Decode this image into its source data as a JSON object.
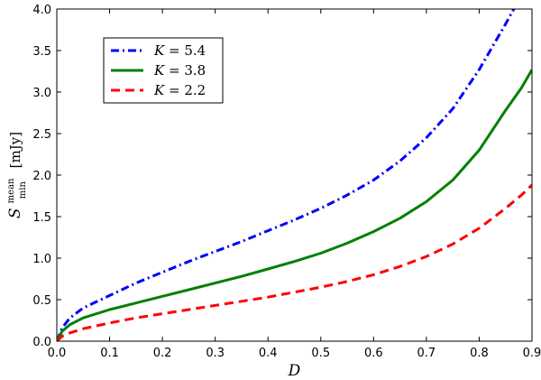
{
  "chart_data": {
    "type": "line",
    "title": "",
    "xlabel": "D",
    "ylabel": {
      "symbol": "S",
      "superscript": "mean",
      "subscript": "min",
      "unit": "[mJy]"
    },
    "xlim": [
      0.0,
      0.9
    ],
    "ylim": [
      0.0,
      4.0
    ],
    "xticks": [
      "0.0",
      "0.1",
      "0.2",
      "0.3",
      "0.4",
      "0.5",
      "0.6",
      "0.7",
      "0.8",
      "0.9"
    ],
    "yticks": [
      "0.0",
      "0.5",
      "1.0",
      "1.5",
      "2.0",
      "2.5",
      "3.0",
      "3.5",
      "4.0"
    ],
    "grid": false,
    "legend_position": "top-left",
    "series": [
      {
        "name": "K = 5.4",
        "legend_var": "K",
        "legend_val": "5.4",
        "color": "#0000ff",
        "style": "dashdot",
        "x": [
          0.0,
          0.01,
          0.025,
          0.05,
          0.1,
          0.15,
          0.2,
          0.25,
          0.3,
          0.35,
          0.4,
          0.45,
          0.5,
          0.55,
          0.6,
          0.65,
          0.7,
          0.75,
          0.8,
          0.83,
          0.85,
          0.87
        ],
        "y": [
          0.0,
          0.16,
          0.28,
          0.4,
          0.55,
          0.7,
          0.83,
          0.96,
          1.08,
          1.2,
          1.33,
          1.46,
          1.6,
          1.76,
          1.94,
          2.17,
          2.45,
          2.8,
          3.27,
          3.6,
          3.82,
          4.05
        ]
      },
      {
        "name": "K = 3.8",
        "legend_var": "K",
        "legend_val": "3.8",
        "color": "#008000",
        "style": "solid",
        "x": [
          0.0,
          0.01,
          0.025,
          0.05,
          0.1,
          0.15,
          0.2,
          0.25,
          0.3,
          0.35,
          0.4,
          0.45,
          0.5,
          0.55,
          0.6,
          0.65,
          0.7,
          0.75,
          0.8,
          0.85,
          0.88,
          0.9
        ],
        "y": [
          0.0,
          0.12,
          0.2,
          0.28,
          0.38,
          0.46,
          0.54,
          0.62,
          0.7,
          0.78,
          0.87,
          0.96,
          1.06,
          1.18,
          1.32,
          1.48,
          1.68,
          1.94,
          2.3,
          2.78,
          3.05,
          3.27
        ]
      },
      {
        "name": "K = 2.2",
        "legend_var": "K",
        "legend_val": "2.2",
        "color": "#ff0000",
        "style": "dashed",
        "x": [
          0.0,
          0.01,
          0.025,
          0.05,
          0.1,
          0.15,
          0.2,
          0.25,
          0.3,
          0.35,
          0.4,
          0.45,
          0.5,
          0.55,
          0.6,
          0.65,
          0.7,
          0.75,
          0.8,
          0.85,
          0.88,
          0.9
        ],
        "y": [
          0.0,
          0.06,
          0.1,
          0.15,
          0.22,
          0.28,
          0.33,
          0.38,
          0.43,
          0.48,
          0.53,
          0.59,
          0.65,
          0.72,
          0.8,
          0.9,
          1.02,
          1.17,
          1.36,
          1.6,
          1.76,
          1.88
        ]
      }
    ]
  }
}
